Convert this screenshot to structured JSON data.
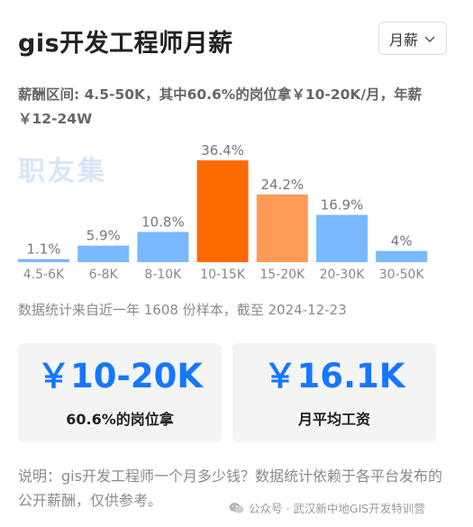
{
  "header": {
    "title": "gis开发工程师月薪",
    "period_select": "月薪"
  },
  "summary": {
    "text": "薪酬区间: 4.5-50K，其中60.6%的岗位拿￥10-20K/月，年薪￥12-24W"
  },
  "watermark": {
    "logo_text": "职友集",
    "account": "公众号 · 武汉新中地GIS开发特训营"
  },
  "chart_data": {
    "type": "bar",
    "categories": [
      "4.5-6K",
      "6-8K",
      "8-10K",
      "10-15K",
      "15-20K",
      "20-30K",
      "30-50K"
    ],
    "values": [
      1.1,
      5.9,
      10.8,
      36.4,
      24.2,
      16.9,
      4
    ],
    "value_labels": [
      "1.1%",
      "5.9%",
      "10.8%",
      "36.4%",
      "24.2%",
      "16.9%",
      "4%"
    ],
    "unit": "%",
    "ylim": [
      0,
      36.4
    ],
    "colors": [
      "#7ab8ff",
      "#7ab8ff",
      "#7ab8ff",
      "#ff6a00",
      "#ff9a57",
      "#7ab8ff",
      "#7ab8ff"
    ],
    "grid": false,
    "legend": "none"
  },
  "sample_note": "数据统计来自近一年 1608 份样本，截至 2024-12-23",
  "cards": [
    {
      "value": "￥10-20K",
      "caption": "60.6%的岗位拿"
    },
    {
      "value": "￥16.1K",
      "caption": "月平均工资"
    }
  ],
  "explanation": "说明：gis开发工程师一个月多少钱？数据统计依赖于各平台发布的公开薪酬，仅供参考。"
}
